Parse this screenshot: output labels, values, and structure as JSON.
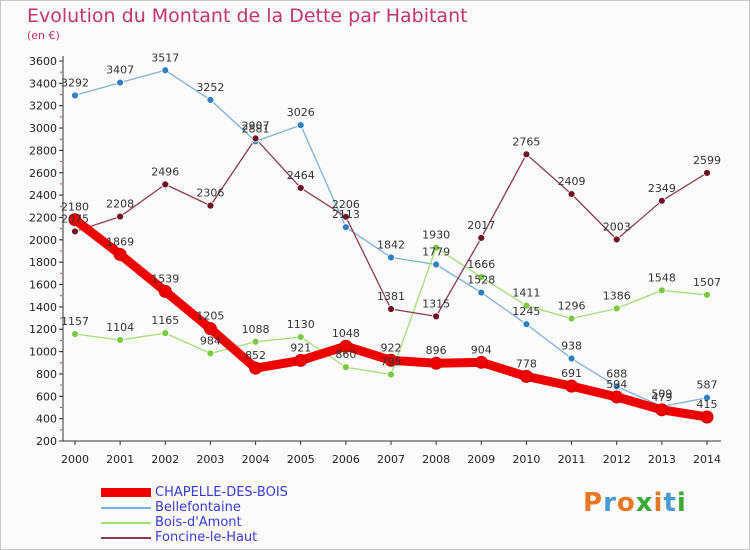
{
  "title": "Evolution du Montant de la Dette par Habitant",
  "subtitle": "(en €)",
  "logo": {
    "text": "Proxiti",
    "colors": [
      "#e87722",
      "#4a9ad4",
      "#e87722",
      "#3aaa35",
      "#e87722",
      "#4a9ad4",
      "#3aaa35"
    ]
  },
  "chart_data": {
    "type": "line",
    "x": [
      "2000",
      "2001",
      "2002",
      "2003",
      "2004",
      "2005",
      "2006",
      "2007",
      "2008",
      "2009",
      "2010",
      "2011",
      "2012",
      "2013",
      "2014"
    ],
    "ylim": [
      200,
      3600
    ],
    "yticks": [
      200,
      400,
      600,
      800,
      1000,
      1200,
      1400,
      1600,
      1800,
      2000,
      2200,
      2400,
      2600,
      2800,
      3000,
      3200,
      3400,
      3600
    ],
    "grid": false,
    "legend": "bottom-left",
    "series": [
      {
        "name": "CHAPELLE-DES-BOIS",
        "color": "#ee0000",
        "marker": "#ee0000",
        "values": [
          2180,
          1869,
          1539,
          1205,
          852,
          921,
          1048,
          922,
          896,
          904,
          778,
          691,
          594,
          479,
          415
        ]
      },
      {
        "name": "Bellefontaine",
        "color": "#7fb0dc",
        "marker": "#2f7fc1",
        "values": [
          3292,
          3407,
          3517,
          3252,
          2881,
          3026,
          2113,
          1842,
          1779,
          1528,
          1245,
          938,
          688,
          509,
          587
        ]
      },
      {
        "name": "Bois-d'Amont",
        "color": "#a3dd78",
        "marker": "#7ac943",
        "values": [
          1157,
          1104,
          1165,
          984,
          1088,
          1130,
          860,
          795,
          1930,
          1666,
          1411,
          1296,
          1386,
          1548,
          1507
        ]
      },
      {
        "name": "Foncine-le-Haut",
        "color": "#8b3c4a",
        "marker": "#6e1424",
        "values": [
          2075,
          2208,
          2496,
          2306,
          2907,
          2464,
          2206,
          1381,
          1315,
          2017,
          2765,
          2409,
          2003,
          2349,
          2599
        ]
      }
    ],
    "point_labels": [
      [
        "2180",
        "1869",
        "1539",
        "1205",
        "852",
        "921",
        "1048",
        "922",
        "896",
        "904",
        "778",
        "691",
        "594",
        "479",
        "415"
      ],
      [
        "3292",
        "3407",
        "3517",
        "3252",
        "2881",
        "3026",
        "2113",
        "1842",
        "1779",
        "1528",
        "1245",
        "938",
        "688",
        "509",
        "587"
      ],
      [
        "1157",
        "1104",
        "1165",
        "984",
        "1088",
        "1130",
        "860",
        "795",
        "1930",
        "1666",
        "1411",
        "1296",
        "1386",
        "1548",
        "1507"
      ],
      [
        "2075",
        "2208",
        "2496",
        "2306",
        "2907",
        "2464",
        "2206",
        "1381",
        "1315",
        "2017",
        "2765",
        "2409",
        "2003",
        "2349",
        "2599"
      ]
    ]
  }
}
